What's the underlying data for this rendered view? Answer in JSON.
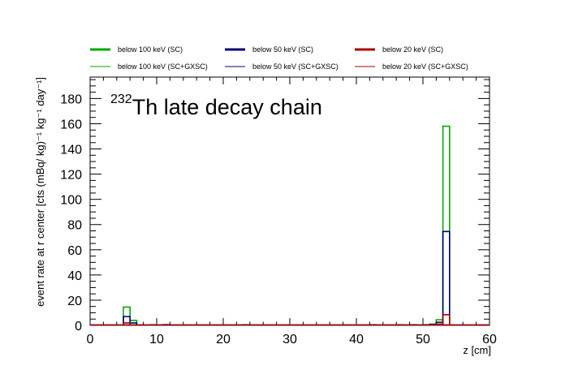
{
  "chart_data": {
    "type": "histogram",
    "title_superscript": "232",
    "title_main": "Th late decay chain",
    "xlabel": "z [cm]",
    "ylabel": "event rate at r center [cts (mBq/ kg)⁻¹ kg⁻¹ day⁻¹]",
    "xlim": [
      0,
      60
    ],
    "ylim": [
      0,
      197
    ],
    "bin_width": 1,
    "x_ticks": [
      "0",
      "10",
      "20",
      "30",
      "40",
      "50",
      "60"
    ],
    "y_ticks": [
      "0",
      "20",
      "40",
      "60",
      "80",
      "100",
      "120",
      "140",
      "160",
      "180"
    ],
    "legend_position": "top",
    "series": [
      {
        "name": "below 100 keV (SC)",
        "color": "#00aa00",
        "line": "thick",
        "bins": [
          [
            5,
            14.5
          ],
          [
            6,
            4
          ],
          [
            9,
            0.5
          ],
          [
            11,
            0.5
          ],
          [
            23,
            0.5
          ],
          [
            42,
            0.5
          ],
          [
            46,
            0.5
          ],
          [
            48,
            0.5
          ],
          [
            50,
            0.5
          ],
          [
            51,
            1
          ],
          [
            52,
            4.5
          ],
          [
            53,
            158
          ]
        ]
      },
      {
        "name": "below 50 keV (SC)",
        "color": "#000080",
        "line": "thick",
        "bins": [
          [
            5,
            7
          ],
          [
            6,
            2
          ],
          [
            11,
            0.5
          ],
          [
            50,
            0.3
          ],
          [
            51,
            0.6
          ],
          [
            52,
            2.5
          ],
          [
            53,
            74.5
          ]
        ]
      },
      {
        "name": "below 20 keV (SC)",
        "color": "#aa0000",
        "line": "thick",
        "bins": [
          [
            5,
            2
          ],
          [
            52,
            1
          ],
          [
            53,
            8.5
          ]
        ]
      },
      {
        "name": "below 100 keV (SC+GXSC)",
        "color": "#00aa00",
        "line": "thin",
        "bins": [
          [
            5,
            14.5
          ],
          [
            6,
            4
          ],
          [
            9,
            0.5
          ],
          [
            11,
            0.5
          ],
          [
            23,
            0.5
          ],
          [
            42,
            0.5
          ],
          [
            46,
            0.5
          ],
          [
            48,
            0.5
          ],
          [
            50,
            0.5
          ],
          [
            51,
            1
          ],
          [
            52,
            4.5
          ],
          [
            53,
            158
          ]
        ]
      },
      {
        "name": "below 50 keV (SC+GXSC)",
        "color": "#000080",
        "line": "thin",
        "bins": [
          [
            5,
            7
          ],
          [
            6,
            2
          ],
          [
            11,
            0.5
          ],
          [
            50,
            0.3
          ],
          [
            51,
            0.6
          ],
          [
            52,
            2.5
          ],
          [
            53,
            74.5
          ]
        ]
      },
      {
        "name": "below 20 keV (SC+GXSC)",
        "color": "#aa0000",
        "line": "thin",
        "bins": [
          [
            5,
            2
          ],
          [
            52,
            1
          ],
          [
            53,
            8.5
          ]
        ]
      }
    ]
  }
}
